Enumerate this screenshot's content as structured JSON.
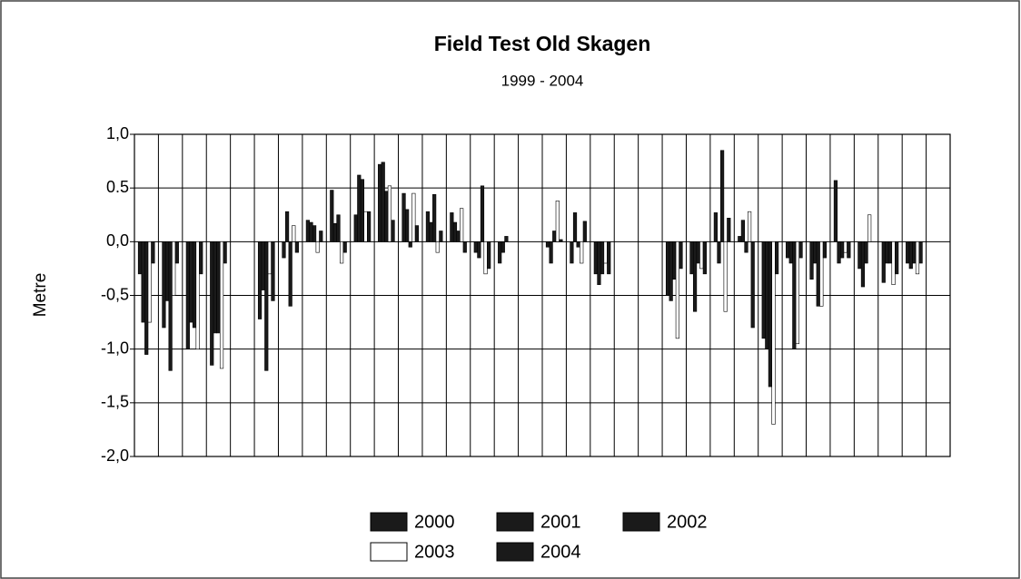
{
  "chart_data": {
    "type": "bar",
    "title": "Field Test Old Skagen",
    "subtitle": "1999 - 2004",
    "y_label": "Metre",
    "categories": [
      null,
      null,
      null,
      null,
      null,
      null,
      null,
      null,
      null,
      null,
      null,
      null,
      null,
      null,
      null,
      null,
      null,
      null,
      null,
      null,
      null,
      null,
      null,
      null,
      null,
      null,
      null,
      null,
      null,
      null,
      null,
      null,
      null,
      null
    ],
    "series": [
      {
        "name": "2000",
        "color": "#1a1a1a",
        "values": [
          -0.3,
          -0.8,
          -1.0,
          -1.15,
          null,
          -0.72,
          -0.15,
          0.2,
          0.48,
          0.25,
          0.72,
          0.45,
          0.28,
          0.27,
          -0.1,
          -0.2,
          null,
          -0.05,
          -0.2,
          -0.3,
          null,
          null,
          -0.5,
          -0.3,
          0.27,
          0.05,
          -0.9,
          -0.15,
          -0.35,
          0.57,
          -0.25,
          -0.38,
          -0.2,
          null
        ]
      },
      {
        "name": "2001",
        "color": "#1a1a1a",
        "values": [
          -0.75,
          -0.55,
          -0.75,
          -0.85,
          null,
          -0.45,
          0.28,
          0.18,
          0.17,
          0.62,
          0.74,
          0.3,
          0.18,
          0.18,
          -0.15,
          -0.1,
          null,
          -0.2,
          0.27,
          -0.4,
          null,
          null,
          -0.55,
          -0.65,
          -0.2,
          0.2,
          -1.0,
          -0.2,
          -0.2,
          -0.2,
          -0.42,
          -0.2,
          -0.25,
          null
        ]
      },
      {
        "name": "2002",
        "color": "#1a1a1a",
        "values": [
          -1.05,
          -1.2,
          -0.8,
          -0.85,
          null,
          -1.2,
          -0.6,
          0.15,
          0.25,
          0.58,
          0.47,
          -0.05,
          0.44,
          0.1,
          0.52,
          0.05,
          null,
          0.1,
          -0.05,
          -0.3,
          null,
          null,
          -0.35,
          -0.2,
          0.85,
          -0.1,
          -1.35,
          -1.0,
          -0.6,
          -0.15,
          -0.2,
          -0.2,
          -0.2,
          null
        ]
      },
      {
        "name": "2003",
        "color": "#ffffff",
        "values": [
          -0.75,
          -0.5,
          -1.0,
          -1.18,
          null,
          -0.3,
          0.15,
          -0.1,
          -0.2,
          0.28,
          0.52,
          0.45,
          -0.1,
          0.31,
          -0.3,
          null,
          null,
          0.38,
          -0.2,
          -0.2,
          null,
          null,
          -0.9,
          -0.25,
          -0.65,
          0.28,
          -1.7,
          -0.95,
          -0.6,
          -0.1,
          0.25,
          -0.4,
          -0.3,
          null
        ]
      },
      {
        "name": "2004",
        "color": "#1a1a1a",
        "values": [
          -0.2,
          -0.2,
          -0.3,
          -0.2,
          null,
          -0.55,
          -0.1,
          0.1,
          -0.1,
          0.28,
          0.2,
          0.15,
          0.1,
          -0.1,
          -0.25,
          null,
          null,
          0.02,
          0.19,
          -0.3,
          null,
          null,
          -0.25,
          -0.3,
          0.22,
          -0.8,
          -0.3,
          -0.15,
          -0.15,
          -0.15,
          null,
          -0.3,
          -0.2,
          null
        ]
      }
    ],
    "ylim": [
      -2,
      1
    ],
    "yticks": [
      {
        "value": 1,
        "label": "1,0"
      },
      {
        "value": 0.5,
        "label": "0.5"
      },
      {
        "value": 0,
        "label": "0,0"
      },
      {
        "value": -0.5,
        "label": "-0,5"
      },
      {
        "value": -1,
        "label": "-1,0"
      },
      {
        "value": -1.5,
        "label": "-1,5"
      },
      {
        "value": -2,
        "label": "-2,0"
      }
    ],
    "grid": true,
    "legend": "bottom"
  }
}
